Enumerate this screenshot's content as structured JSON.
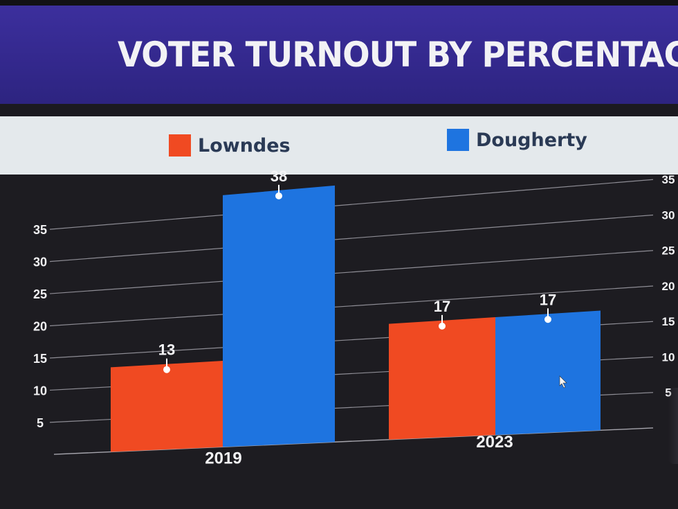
{
  "chart_data": {
    "type": "bar",
    "title": "VOTER TURNOUT BY PERCENTAGE",
    "categories": [
      "2019",
      "2023"
    ],
    "series": [
      {
        "name": "Lowndes",
        "color": "#f04a22",
        "values": [
          13,
          17
        ]
      },
      {
        "name": "Dougherty",
        "color": "#1e74e0",
        "values": [
          38,
          17
        ]
      }
    ],
    "data_labels": [
      [
        "13",
        "17"
      ],
      [
        "38",
        "17"
      ]
    ],
    "yticks": [
      5,
      10,
      15,
      20,
      25,
      30,
      35
    ],
    "ylim": [
      0,
      40
    ],
    "grid": true,
    "legend_position": "top"
  }
}
